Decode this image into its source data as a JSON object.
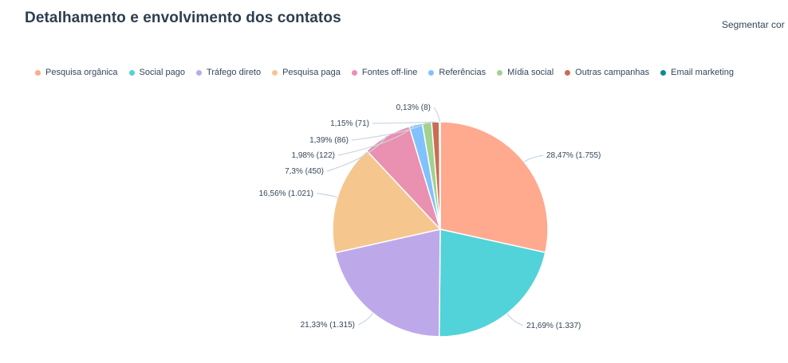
{
  "header": {
    "title": "Detalhamento e envolvimento dos contatos",
    "segment_label": "Segmentar cor"
  },
  "chart_data": {
    "type": "pie",
    "title": "Detalhamento e envolvimento dos contatos",
    "legend_position": "top",
    "series": [
      {
        "name": "Pesquisa orgânica",
        "value": 1755,
        "label": "28,47% (1.755)",
        "color": "#ffa98f"
      },
      {
        "name": "Social pago",
        "value": 1337,
        "label": "21,69% (1.337)",
        "color": "#51d3d9"
      },
      {
        "name": "Tráfego direto",
        "value": 1315,
        "label": "21,33% (1.315)",
        "color": "#bda9ea"
      },
      {
        "name": "Pesquisa paga",
        "value": 1021,
        "label": "16,56% (1.021)",
        "color": "#f5c78e"
      },
      {
        "name": "Fontes off-line",
        "value": 450,
        "label": "7,3% (450)",
        "color": "#ea90b1"
      },
      {
        "name": "Referências",
        "value": 122,
        "label": "1,98% (122)",
        "color": "#81c1fd"
      },
      {
        "name": "Mídia social",
        "value": 86,
        "label": "1,39% (86)",
        "color": "#a2d28f"
      },
      {
        "name": "Outras campanhas",
        "value": 71,
        "label": "1,15% (71)",
        "color": "#c86e55"
      },
      {
        "name": "Email marketing",
        "value": 8,
        "label": "0,13% (8)",
        "color": "#0b8a92"
      }
    ]
  }
}
